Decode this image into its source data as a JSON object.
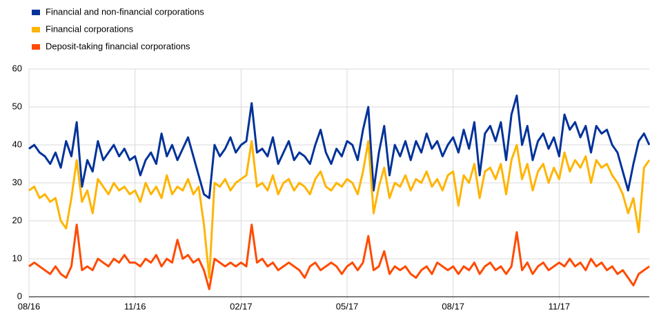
{
  "chart_data": {
    "type": "line",
    "categories": [
      "08/16",
      null,
      null,
      null,
      null,
      null,
      null,
      null,
      null,
      null,
      null,
      null,
      null,
      null,
      null,
      null,
      null,
      null,
      null,
      null,
      "11/16",
      null,
      null,
      null,
      null,
      null,
      null,
      null,
      null,
      null,
      null,
      null,
      null,
      null,
      null,
      null,
      null,
      null,
      null,
      null,
      "02/17",
      null,
      null,
      null,
      null,
      null,
      null,
      null,
      null,
      null,
      null,
      null,
      null,
      null,
      null,
      null,
      null,
      null,
      null,
      null,
      "05/17",
      null,
      null,
      null,
      null,
      null,
      null,
      null,
      null,
      null,
      null,
      null,
      null,
      null,
      null,
      null,
      null,
      null,
      null,
      null,
      "08/17",
      null,
      null,
      null,
      null,
      null,
      null,
      null,
      null,
      null,
      null,
      null,
      null,
      null,
      null,
      null,
      null,
      null,
      null,
      null,
      "11/17",
      null,
      null,
      null,
      null,
      null,
      null,
      null,
      null,
      null,
      null,
      null,
      null,
      null,
      null,
      null,
      null,
      null
    ],
    "series": [
      {
        "name": "Financial and non-financial corporations",
        "color": "#003299",
        "values": [
          39,
          40,
          38,
          37,
          35,
          38,
          34,
          41,
          37,
          46,
          29,
          36,
          33,
          41,
          36,
          38,
          40,
          37,
          39,
          36,
          37,
          32,
          36,
          38,
          35,
          43,
          37,
          40,
          36,
          39,
          42,
          37,
          32,
          27,
          26,
          40,
          37,
          39,
          42,
          38,
          40,
          41,
          51,
          38,
          39,
          37,
          42,
          35,
          38,
          41,
          36,
          38,
          37,
          35,
          40,
          44,
          38,
          35,
          39,
          37,
          41,
          40,
          36,
          44,
          50,
          28,
          38,
          45,
          32,
          40,
          37,
          41,
          36,
          41,
          38,
          43,
          39,
          41,
          37,
          40,
          42,
          38,
          44,
          39,
          46,
          32,
          43,
          45,
          41,
          46,
          36,
          48,
          53,
          40,
          45,
          36,
          41,
          43,
          39,
          42,
          37,
          48,
          44,
          46,
          42,
          45,
          38,
          45,
          43,
          44,
          40,
          38,
          33,
          28,
          35,
          41,
          43,
          40
        ]
      },
      {
        "name": "Financial corporations",
        "color": "#ffb400",
        "values": [
          28,
          29,
          26,
          27,
          25,
          26,
          20,
          18,
          26,
          36,
          25,
          28,
          22,
          31,
          29,
          27,
          30,
          28,
          29,
          27,
          28,
          25,
          30,
          27,
          29,
          26,
          32,
          27,
          29,
          28,
          31,
          27,
          29,
          19,
          5,
          30,
          29,
          31,
          28,
          30,
          31,
          32,
          41,
          29,
          30,
          28,
          32,
          27,
          30,
          31,
          28,
          30,
          29,
          27,
          31,
          33,
          29,
          28,
          30,
          29,
          31,
          30,
          27,
          33,
          41,
          22,
          29,
          34,
          26,
          30,
          29,
          32,
          28,
          31,
          30,
          33,
          29,
          31,
          28,
          32,
          33,
          24,
          32,
          30,
          35,
          26,
          33,
          34,
          31,
          35,
          27,
          36,
          40,
          31,
          35,
          28,
          33,
          35,
          30,
          34,
          31,
          38,
          33,
          36,
          34,
          37,
          30,
          36,
          34,
          35,
          32,
          30,
          27,
          22,
          26,
          17,
          34,
          36
        ]
      },
      {
        "name": "Deposit-taking financial corporations",
        "color": "#ff4b00",
        "values": [
          8,
          9,
          8,
          7,
          6,
          8,
          6,
          5,
          8,
          19,
          7,
          8,
          7,
          10,
          9,
          8,
          10,
          9,
          11,
          9,
          9,
          8,
          10,
          9,
          11,
          8,
          10,
          9,
          15,
          10,
          11,
          9,
          10,
          7,
          2,
          10,
          9,
          8,
          9,
          8,
          9,
          8,
          19,
          9,
          10,
          8,
          9,
          7,
          8,
          9,
          8,
          7,
          5,
          8,
          9,
          7,
          8,
          9,
          8,
          6,
          8,
          9,
          7,
          9,
          16,
          7,
          8,
          12,
          6,
          8,
          7,
          8,
          6,
          5,
          7,
          8,
          6,
          9,
          8,
          7,
          8,
          6,
          8,
          7,
          9,
          6,
          8,
          9,
          7,
          8,
          6,
          8,
          17,
          7,
          9,
          6,
          8,
          9,
          7,
          8,
          9,
          8,
          10,
          8,
          9,
          7,
          10,
          8,
          9,
          7,
          8,
          6,
          7,
          5,
          3,
          6,
          7,
          8
        ]
      }
    ],
    "ylim": [
      0,
      60
    ],
    "yticks": [
      0,
      10,
      20,
      30,
      40,
      50,
      60
    ],
    "grid": true
  }
}
